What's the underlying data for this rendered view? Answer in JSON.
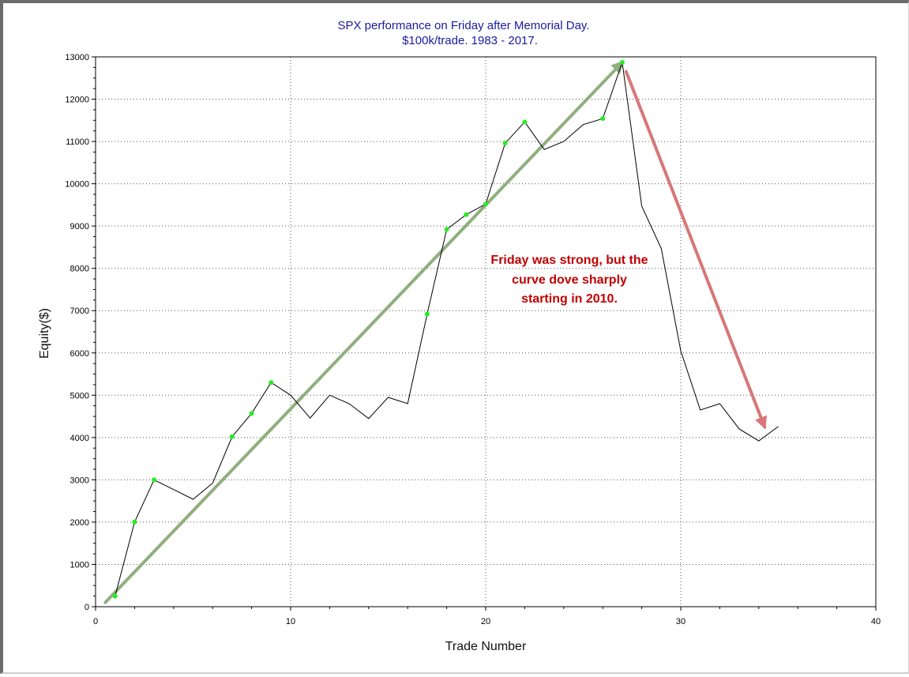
{
  "chart_data": {
    "type": "line",
    "title": "SPX performance on Friday after Memorial Day.",
    "subtitle": "$100k/trade. 1983 - 2017.",
    "xlabel": "Trade Number",
    "ylabel": "Equity($)",
    "xlim": [
      0,
      40
    ],
    "ylim": [
      0,
      13000
    ],
    "x_ticks": [
      0,
      10,
      20,
      30,
      40
    ],
    "y_ticks": [
      0,
      1000,
      2000,
      3000,
      4000,
      5000,
      6000,
      7000,
      8000,
      9000,
      10000,
      11000,
      12000,
      13000
    ],
    "grid": true,
    "series": [
      {
        "values": [
          [
            1,
            250
          ],
          [
            2,
            2000
          ],
          [
            3,
            3000
          ],
          [
            4,
            2770
          ],
          [
            5,
            2540
          ],
          [
            6,
            2920
          ],
          [
            7,
            4020
          ],
          [
            8,
            4570
          ],
          [
            9,
            5300
          ],
          [
            10,
            5000
          ],
          [
            11,
            4460
          ],
          [
            12,
            5000
          ],
          [
            13,
            4800
          ],
          [
            14,
            4450
          ],
          [
            15,
            4950
          ],
          [
            16,
            4800
          ],
          [
            17,
            6920
          ],
          [
            18,
            8920
          ],
          [
            19,
            9270
          ],
          [
            20,
            9520
          ],
          [
            21,
            10960
          ],
          [
            22,
            11460
          ],
          [
            23,
            10810
          ],
          [
            24,
            11000
          ],
          [
            25,
            11400
          ],
          [
            26,
            11540
          ],
          [
            27,
            12870
          ],
          [
            28,
            9470
          ],
          [
            29,
            8470
          ],
          [
            30,
            6050
          ],
          [
            31,
            4650
          ],
          [
            32,
            4800
          ],
          [
            33,
            4200
          ],
          [
            34,
            3920
          ],
          [
            35,
            4260
          ]
        ],
        "color": "#000000"
      }
    ],
    "winning_points_x": [
      1,
      2,
      3,
      7,
      8,
      9,
      17,
      18,
      19,
      20,
      21,
      22,
      26,
      27
    ],
    "marker_color": "#22ee22",
    "annotations": [
      {
        "text_lines": [
          "Friday was strong, but the",
          "curve dove sharply",
          "starting in 2010."
        ],
        "color": "#c00000"
      }
    ],
    "arrows": [
      {
        "from": [
          0.5,
          100
        ],
        "to": [
          27,
          12870
        ],
        "color": "#8faf7e"
      },
      {
        "from": [
          27.2,
          12650
        ],
        "to": [
          34.3,
          4250
        ],
        "color": "#d77777"
      }
    ]
  }
}
